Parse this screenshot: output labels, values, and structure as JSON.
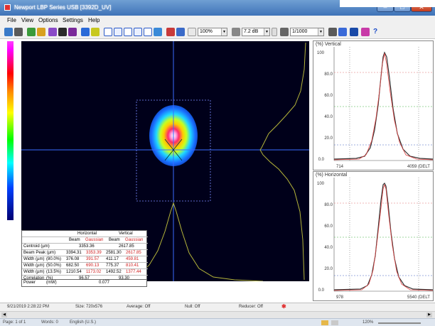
{
  "window": {
    "title": "Newport LBP Series USB  [3392D_UV]"
  },
  "menu": {
    "items": [
      "File",
      "View",
      "Options",
      "Settings",
      "Help"
    ]
  },
  "toolbar": {
    "zoom": "100%",
    "gain": "7.2 dB",
    "exposure": "1/1000",
    "help_label": "?"
  },
  "vertical_panel": {
    "title": "(%) Vertical",
    "y_ticks": [
      "100",
      "80.0",
      "60.0",
      "40.0",
      "20.0",
      "0.0"
    ],
    "x_start": "714",
    "x_end": "4059 (DELT"
  },
  "horizontal_panel": {
    "title": "(%) Horizontal",
    "y_ticks": [
      "100",
      "80.0",
      "60.0",
      "40.0",
      "20.0",
      "0.0"
    ],
    "x_start": "978",
    "x_end": "5540 (DELT"
  },
  "results_table": {
    "group_headers": [
      "Horizontal",
      "Vertical"
    ],
    "sub_headers": [
      "Beam",
      "Gaussian",
      "Beam",
      "Gaussian"
    ],
    "rows": [
      {
        "label": "Centroid  (µm)",
        "unit": "",
        "h_merged": "3353.36",
        "v_merged": "2617.85"
      },
      {
        "label": "Beam Peak (µm)",
        "unit": "",
        "h_beam": "3394.31",
        "h_gauss": "3353.39",
        "v_beam": "2581.30",
        "v_gauss": "2617.85"
      },
      {
        "label": "Width (µm)",
        "unit": "(80.0%)",
        "h_beam": "376.08",
        "h_gauss": "391.57",
        "v_beam": "411.17",
        "v_gauss": "459.81"
      },
      {
        "label": "Width (µm)",
        "unit": "(50.0%)",
        "h_beam": "682.50",
        "h_gauss": "690.13",
        "v_beam": "775.37",
        "v_gauss": "810.41"
      },
      {
        "label": "Width (µm)",
        "unit": "(13.5%)",
        "h_beam": "1210.54",
        "h_gauss": "1173.02",
        "v_beam": "1492.52",
        "v_gauss": "1377.44"
      },
      {
        "label": "Correlation",
        "unit": "(%)",
        "h_merged": "96.57",
        "v_merged": "93.30"
      },
      {
        "label": "Power",
        "unit": "(mW)",
        "h_merged": "0.077",
        "v_merged": ""
      }
    ]
  },
  "statusbar": {
    "datetime": "9/21/2019 2:28:22 PM",
    "size": "Size: 720x576",
    "average": "Average: Off",
    "null": "Null: Off",
    "reducer": "Reducer: Off"
  },
  "taskbar": {
    "page": "Page: 1 of 1",
    "words": "Words: 0",
    "language": "English (U.S.)",
    "zoom": "120%"
  },
  "colors": {
    "crosshair": "#3a6cff",
    "profile": "#b5b53a",
    "gaussian": "#e04040",
    "fit_lines": "#40b040"
  }
}
